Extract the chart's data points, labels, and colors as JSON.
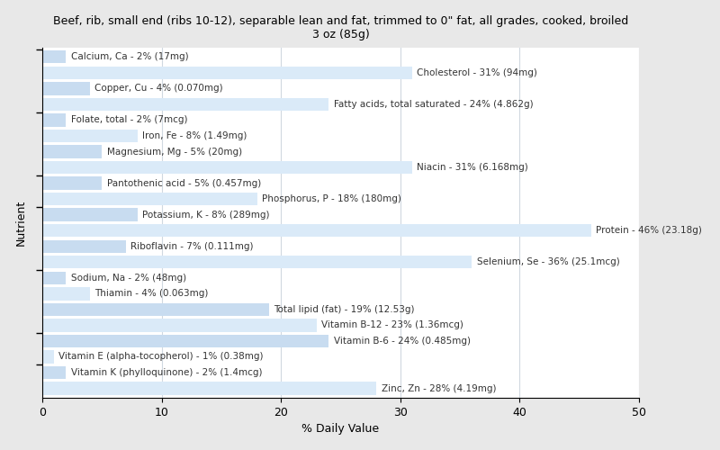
{
  "title": "Beef, rib, small end (ribs 10-12), separable lean and fat, trimmed to 0\" fat, all grades, cooked, broiled\n3 oz (85g)",
  "xlabel": "% Daily Value",
  "ylabel": "Nutrient",
  "xlim": [
    0,
    50
  ],
  "bar_color_1": "#c8dcf0",
  "bar_color_2": "#daeaf8",
  "background_color": "#e8e8e8",
  "plot_bg_color": "#ffffff",
  "grid_color": "#d0d8e0",
  "text_color": "#333333",
  "nutrients": [
    {
      "label": "Calcium, Ca - 2% (17mg)",
      "value": 2
    },
    {
      "label": "Cholesterol - 31% (94mg)",
      "value": 31
    },
    {
      "label": "Copper, Cu - 4% (0.070mg)",
      "value": 4
    },
    {
      "label": "Fatty acids, total saturated - 24% (4.862g)",
      "value": 24
    },
    {
      "label": "Folate, total - 2% (7mcg)",
      "value": 2
    },
    {
      "label": "Iron, Fe - 8% (1.49mg)",
      "value": 8
    },
    {
      "label": "Magnesium, Mg - 5% (20mg)",
      "value": 5
    },
    {
      "label": "Niacin - 31% (6.168mg)",
      "value": 31
    },
    {
      "label": "Pantothenic acid - 5% (0.457mg)",
      "value": 5
    },
    {
      "label": "Phosphorus, P - 18% (180mg)",
      "value": 18
    },
    {
      "label": "Potassium, K - 8% (289mg)",
      "value": 8
    },
    {
      "label": "Protein - 46% (23.18g)",
      "value": 46
    },
    {
      "label": "Riboflavin - 7% (0.111mg)",
      "value": 7
    },
    {
      "label": "Selenium, Se - 36% (25.1mcg)",
      "value": 36
    },
    {
      "label": "Sodium, Na - 2% (48mg)",
      "value": 2
    },
    {
      "label": "Thiamin - 4% (0.063mg)",
      "value": 4
    },
    {
      "label": "Total lipid (fat) - 19% (12.53g)",
      "value": 19
    },
    {
      "label": "Vitamin B-12 - 23% (1.36mcg)",
      "value": 23
    },
    {
      "label": "Vitamin B-6 - 24% (0.485mg)",
      "value": 24
    },
    {
      "label": "Vitamin E (alpha-tocopherol) - 1% (0.38mg)",
      "value": 1
    },
    {
      "label": "Vitamin K (phylloquinone) - 2% (1.4mcg)",
      "value": 2
    },
    {
      "label": "Zinc, Zn - 28% (4.19mg)",
      "value": 28
    }
  ],
  "separator_positions_from_bottom": [
    1.5,
    3.5,
    7.5,
    11.5,
    13.5,
    17.5,
    21.5
  ],
  "xticks": [
    0,
    10,
    20,
    30,
    40,
    50
  ],
  "title_fontsize": 9,
  "label_fontsize": 7.5,
  "axis_fontsize": 9
}
